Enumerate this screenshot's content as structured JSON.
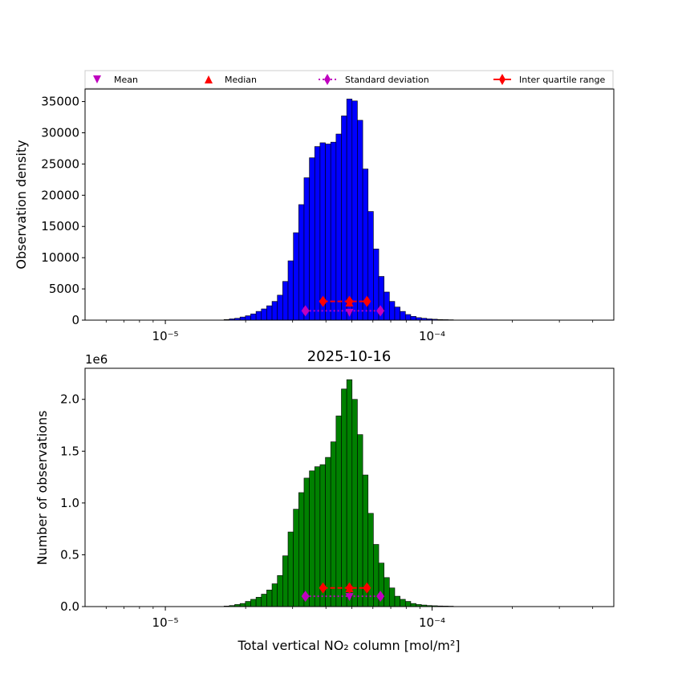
{
  "legend": {
    "mean": "Mean",
    "median": "Median",
    "std": "Standard deviation",
    "iqr": "Inter quartile range"
  },
  "colors": {
    "mean": "#bf00bf",
    "median": "#ff0000",
    "std": "#bf00bf",
    "iqr": "#ff0000",
    "top_bars": "#0000ff",
    "bottom_bars": "#008000"
  },
  "x_tick_labels": [
    "10⁻⁵",
    "10⁻⁴"
  ],
  "chart_data": [
    {
      "type": "bar",
      "subplot": "top",
      "title": "",
      "xlabel": "",
      "ylabel": "Observation density",
      "xscale": "log",
      "xlim": [
        5e-06,
        0.00048
      ],
      "ylim": [
        0,
        37000
      ],
      "yticks": [
        0,
        5000,
        10000,
        15000,
        20000,
        25000,
        30000,
        35000
      ],
      "ytick_labels": [
        "0",
        "5000",
        "10000",
        "15000",
        "20000",
        "25000",
        "30000",
        "35000"
      ],
      "bin_log10_start": -4.78,
      "bin_log10_width": 0.02,
      "values": [
        100,
        200,
        300,
        500,
        700,
        1000,
        1400,
        1800,
        2300,
        3000,
        4000,
        6200,
        9500,
        14000,
        18500,
        22800,
        26000,
        27800,
        28400,
        28200,
        28500,
        29800,
        32700,
        35400,
        35100,
        32000,
        24200,
        17400,
        11400,
        7000,
        4500,
        3000,
        2100,
        1400,
        900,
        600,
        400,
        300,
        200,
        150,
        100,
        80,
        60
      ],
      "stats": {
        "mean": {
          "x": 4.9e-05,
          "y": 1300
        },
        "median": {
          "x": 4.9e-05,
          "y": 2700
        },
        "std": {
          "x_low": 3.35e-05,
          "x_high": 6.4e-05,
          "y": 1500
        },
        "iqr": {
          "x_low": 3.9e-05,
          "x_mid": 4.9e-05,
          "x_high": 5.7e-05,
          "y": 3000
        }
      }
    },
    {
      "type": "bar",
      "subplot": "bottom",
      "title": "2025-10-16",
      "xlabel": "Total vertical NO₂ column [mol/m²]",
      "ylabel": "Number of observations",
      "offset_text": "1e6",
      "xscale": "log",
      "xlim": [
        5e-06,
        0.00048
      ],
      "ylim": [
        0,
        2.3
      ],
      "yticks": [
        0,
        0.5,
        1.0,
        1.5,
        2.0
      ],
      "ytick_labels": [
        "0.0",
        "0.5",
        "1.0",
        "1.5",
        "2.0"
      ],
      "bin_log10_start": -4.78,
      "bin_log10_width": 0.02,
      "values": [
        0.005,
        0.01,
        0.02,
        0.03,
        0.05,
        0.07,
        0.09,
        0.12,
        0.16,
        0.22,
        0.3,
        0.49,
        0.72,
        0.94,
        1.1,
        1.24,
        1.31,
        1.35,
        1.37,
        1.44,
        1.59,
        1.84,
        2.1,
        2.19,
        2.0,
        1.66,
        1.27,
        0.9,
        0.6,
        0.42,
        0.28,
        0.18,
        0.1,
        0.07,
        0.05,
        0.03,
        0.02,
        0.015,
        0.01,
        0.008,
        0.006,
        0.005,
        0.004
      ],
      "stats": {
        "mean": {
          "x": 4.9e-05,
          "y": 0.1
        },
        "median": {
          "x": 4.9e-05,
          "y": 0.17
        },
        "std": {
          "x_low": 3.35e-05,
          "x_high": 6.4e-05,
          "y": 0.1
        },
        "iqr": {
          "x_low": 3.9e-05,
          "x_mid": 4.9e-05,
          "x_high": 5.7e-05,
          "y": 0.18
        }
      }
    }
  ]
}
